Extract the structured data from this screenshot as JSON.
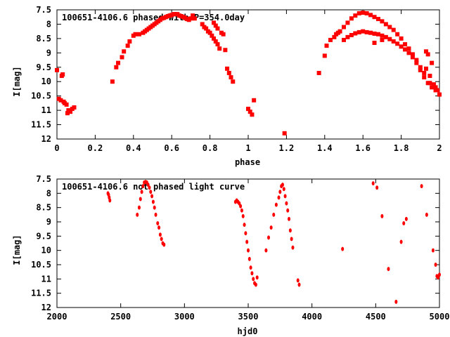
{
  "colors": {
    "marker": "#ff0000",
    "axes": "#000000",
    "background": "#ffffff"
  },
  "chart_data": [
    {
      "type": "scatter",
      "title": "100651-4106.6 phased with P=354.0day",
      "xlabel": "phase",
      "ylabel": "I[mag]",
      "xlim": [
        0,
        2
      ],
      "ylim": [
        7.5,
        12
      ],
      "y_inverted": true,
      "grid": false,
      "marker": "filled-square",
      "xticks": [
        "0",
        "0.2",
        "0.4",
        "0.6",
        "0.8",
        "1",
        "1.2",
        "1.4",
        "1.6",
        "1.8",
        "2"
      ],
      "yticks": [
        "7.5",
        "8",
        "8.5",
        "9",
        "9.5",
        "10",
        "10.5",
        "11",
        "11.5",
        "12"
      ],
      "series": [
        {
          "x": [
            0.0,
            0.01,
            0.02,
            0.025,
            0.03,
            0.035,
            0.04,
            0.05,
            0.055,
            0.06,
            0.07,
            0.08,
            0.09,
            0.29,
            0.31,
            0.32,
            0.34,
            0.35,
            0.37,
            0.38,
            0.4,
            0.41,
            0.43,
            0.45,
            0.46,
            0.47,
            0.48,
            0.49,
            0.5,
            0.51,
            0.52,
            0.53,
            0.54,
            0.55,
            0.56,
            0.57,
            0.58,
            0.59,
            0.6,
            0.61,
            0.62,
            0.63,
            0.64,
            0.65,
            0.66,
            0.67,
            0.68,
            0.69,
            0.7,
            0.71,
            0.72,
            0.76,
            0.77,
            0.78,
            0.79,
            0.8,
            0.81,
            0.82,
            0.83,
            0.84,
            0.85,
            0.82,
            0.83,
            0.84,
            0.86,
            0.87,
            0.88,
            0.89,
            0.9,
            0.91,
            0.92,
            1.0,
            1.01,
            1.02,
            1.03,
            1.19,
            1.37,
            1.4,
            1.41,
            1.43,
            1.45,
            1.46,
            1.47,
            1.48,
            1.5,
            1.52,
            1.54,
            1.56,
            1.58,
            1.6,
            1.62,
            1.64,
            1.66,
            1.68,
            1.7,
            1.72,
            1.74,
            1.76,
            1.78,
            1.8,
            1.82,
            1.84,
            1.86,
            1.88,
            1.9,
            1.92,
            1.93,
            1.94,
            1.95,
            1.96,
            1.97,
            1.98,
            1.99,
            1.5,
            1.52,
            1.54,
            1.56,
            1.58,
            1.6,
            1.62,
            1.64,
            1.66,
            1.68,
            1.7,
            1.72,
            1.74,
            1.76,
            1.78,
            1.8,
            1.82,
            1.84,
            1.86,
            1.88,
            1.9,
            1.92,
            1.94,
            1.96,
            1.98,
            2.0,
            1.66,
            1.7,
            1.93,
            1.95,
            1.97
          ],
          "y": [
            9.6,
            10.6,
            10.65,
            9.8,
            9.75,
            10.7,
            10.75,
            10.8,
            11.1,
            11.0,
            11.05,
            10.95,
            10.9,
            10.0,
            9.5,
            9.35,
            9.15,
            8.95,
            8.75,
            8.6,
            8.4,
            8.35,
            8.35,
            8.3,
            8.25,
            8.2,
            8.15,
            8.1,
            8.05,
            8.0,
            7.95,
            7.9,
            7.85,
            7.8,
            7.78,
            7.75,
            7.72,
            7.7,
            7.68,
            7.65,
            7.65,
            7.65,
            7.7,
            7.72,
            7.75,
            7.78,
            7.82,
            7.85,
            7.8,
            7.7,
            7.8,
            8.0,
            8.1,
            8.15,
            8.25,
            8.3,
            8.4,
            8.5,
            8.6,
            8.7,
            8.85,
            7.95,
            8.05,
            8.15,
            8.3,
            8.35,
            8.9,
            9.55,
            9.7,
            9.85,
            10.0,
            10.95,
            11.05,
            11.15,
            10.65,
            11.8,
            9.7,
            9.1,
            8.75,
            8.55,
            8.45,
            8.35,
            8.3,
            8.25,
            8.1,
            7.95,
            7.8,
            7.7,
            7.62,
            7.6,
            7.62,
            7.68,
            7.75,
            7.82,
            7.9,
            8.0,
            8.1,
            8.2,
            8.35,
            8.5,
            8.7,
            8.85,
            9.05,
            9.25,
            9.5,
            9.7,
            8.95,
            9.05,
            9.8,
            9.35,
            10.1,
            10.2,
            10.3,
            8.55,
            8.45,
            8.38,
            8.32,
            8.28,
            8.25,
            8.28,
            8.3,
            8.33,
            8.35,
            8.4,
            8.45,
            8.52,
            8.6,
            8.68,
            8.78,
            8.88,
            9.0,
            9.15,
            9.35,
            9.6,
            9.85,
            10.05,
            10.2,
            10.3,
            10.45,
            8.65,
            8.55,
            9.55,
            10.05,
            10.1
          ]
        }
      ]
    },
    {
      "type": "scatter",
      "title": "100651-4106.6 not phased light curve",
      "xlabel": "hjd0",
      "ylabel": "I[mag]",
      "xlim": [
        2000,
        5000
      ],
      "ylim": [
        7.5,
        12
      ],
      "y_inverted": true,
      "grid": false,
      "marker": "filled-dot",
      "xticks": [
        "2000",
        "2500",
        "3000",
        "3500",
        "4000",
        "4500",
        "5000"
      ],
      "yticks": [
        "7.5",
        "8",
        "8.5",
        "9",
        "9.5",
        "10",
        "10.5",
        "11",
        "11.5",
        "12"
      ],
      "series": [
        {
          "x": [
            2400,
            2405,
            2410,
            2415,
            2630,
            2645,
            2655,
            2665,
            2675,
            2685,
            2695,
            2705,
            2715,
            2725,
            2735,
            2745,
            2755,
            2765,
            2775,
            2790,
            2800,
            2810,
            2820,
            2830,
            2840,
            3400,
            3410,
            3420,
            3430,
            3440,
            3450,
            3460,
            3470,
            3480,
            3490,
            3500,
            3510,
            3520,
            3530,
            3540,
            3550,
            3560,
            3570,
            3640,
            3660,
            3680,
            3700,
            3720,
            3740,
            3750,
            3760,
            3770,
            3780,
            3790,
            3800,
            3810,
            3820,
            3830,
            3840,
            3850,
            3890,
            3900,
            4240,
            4480,
            4510,
            4550,
            4600,
            4660,
            4700,
            4720,
            4740,
            4860,
            4900,
            4950,
            4970,
            4980,
            4990,
            5000
          ],
          "y": [
            8.0,
            8.05,
            8.15,
            8.25,
            8.75,
            8.5,
            8.2,
            7.95,
            7.75,
            7.62,
            7.6,
            7.62,
            7.7,
            7.8,
            7.95,
            8.1,
            8.3,
            8.5,
            8.75,
            9.05,
            9.2,
            9.45,
            9.6,
            9.75,
            9.8,
            8.3,
            8.25,
            8.3,
            8.35,
            8.45,
            8.6,
            8.8,
            9.1,
            9.4,
            9.7,
            10.0,
            10.3,
            10.6,
            10.8,
            11.0,
            11.15,
            11.2,
            10.95,
            10.0,
            9.55,
            9.2,
            8.75,
            8.4,
            8.15,
            7.95,
            7.75,
            7.7,
            7.85,
            8.1,
            8.35,
            8.6,
            8.9,
            9.3,
            9.6,
            9.9,
            11.05,
            11.2,
            9.95,
            7.65,
            7.8,
            8.8,
            10.65,
            11.8,
            9.7,
            9.05,
            8.9,
            7.75,
            8.75,
            10.0,
            10.5,
            10.9,
            10.95,
            10.85
          ]
        }
      ]
    }
  ]
}
